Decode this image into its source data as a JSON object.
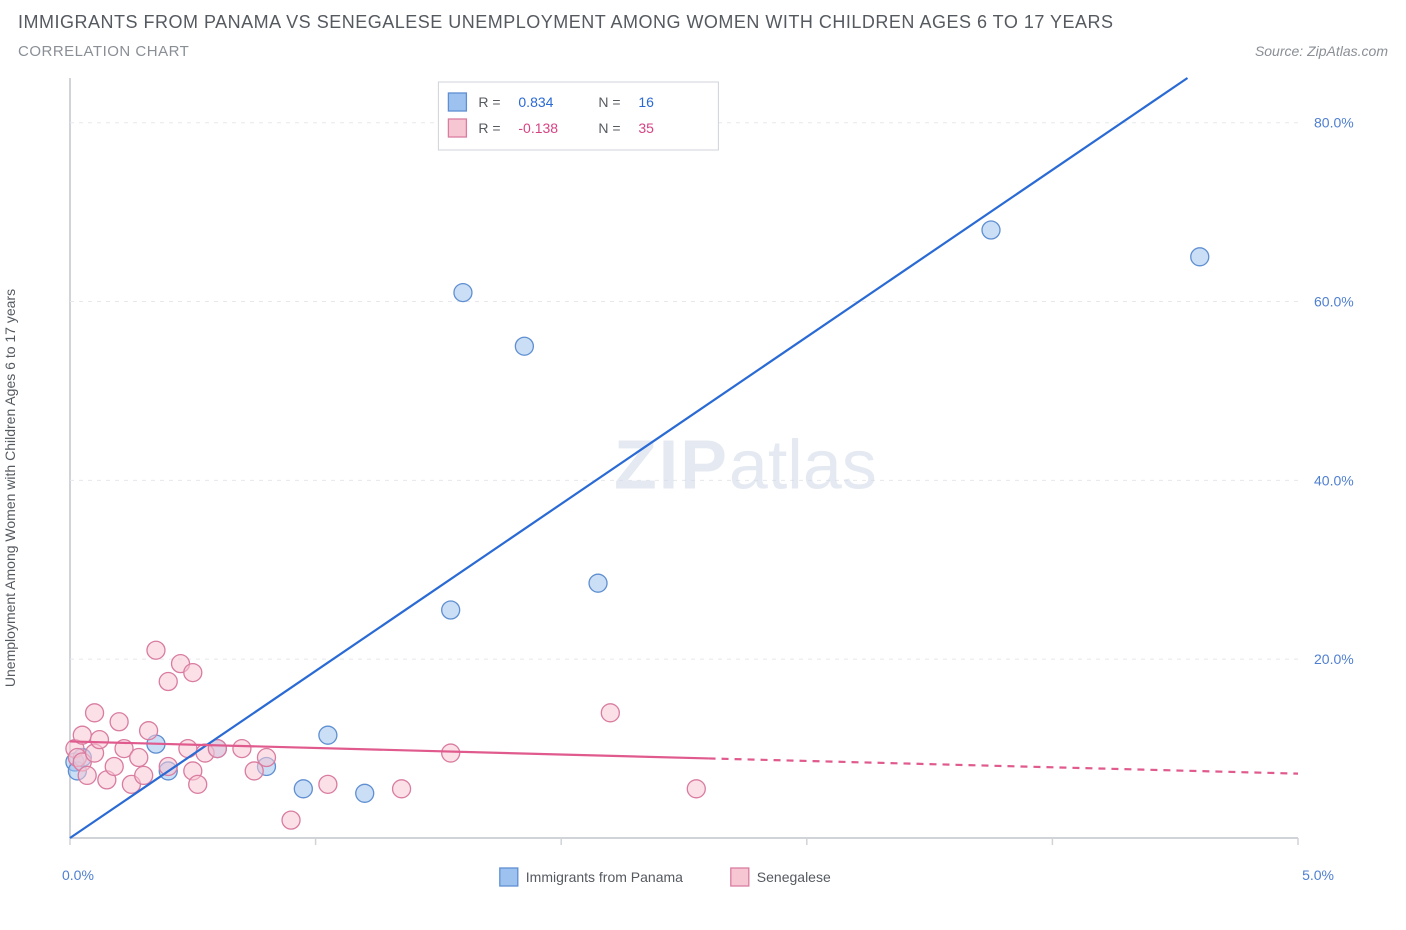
{
  "title": "IMMIGRANTS FROM PANAMA VS SENEGALESE UNEMPLOYMENT AMONG WOMEN WITH CHILDREN AGES 6 TO 17 YEARS",
  "subtitle": "CORRELATION CHART",
  "source_label": "Source: ZipAtlas.com",
  "ylabel": "Unemployment Among Women with Children Ages 6 to 17 years",
  "watermark": "ZIPatlas",
  "legend_box": {
    "rows": [
      {
        "swatch": "#9ec2ef",
        "border": "#5f8fd1",
        "r_label": "R =",
        "r_value": "0.834",
        "n_label": "N =",
        "n_value": "16",
        "value_color": "#2a6ad4"
      },
      {
        "swatch": "#f7c6d3",
        "border": "#d97ca0",
        "r_label": "R =",
        "r_value": "-0.138",
        "n_label": "N =",
        "n_value": "35",
        "value_color": "#d64383"
      }
    ]
  },
  "x_legend": [
    {
      "swatch": "#9ec2ef",
      "border": "#5f8fd1",
      "label": "Immigrants from Panama"
    },
    {
      "swatch": "#f7c6d3",
      "border": "#d97ca0",
      "label": "Senegalese"
    }
  ],
  "chart": {
    "type": "scatter",
    "background_color": "#ffffff",
    "grid_color": "#e6e8ec",
    "axis_color": "#d0d3d8",
    "xlim": [
      0,
      5
    ],
    "ylim": [
      0,
      85
    ],
    "x_ticks": [
      0,
      1,
      2,
      3,
      4,
      5
    ],
    "x_tick_labels": {
      "0": "0.0%",
      "5": "5.0%"
    },
    "y_ticks": [
      20,
      40,
      60,
      80
    ],
    "y_tick_labels": {
      "20": "20.0%",
      "40": "40.0%",
      "60": "60.0%",
      "80": "80.0%"
    },
    "tick_label_color": "#4f7fd1",
    "tick_label_fontsize": 14,
    "marker_radius": 9,
    "marker_opacity": 0.55,
    "series": [
      {
        "name": "Immigrants from Panama",
        "fill": "#9ec2ef",
        "stroke": "#5f8fd1",
        "line_color": "#2a6ad4",
        "line_width": 2.2,
        "regression": {
          "x1": 0.0,
          "y1": 0.0,
          "x2": 4.55,
          "y2": 85.0
        },
        "points": [
          [
            0.02,
            8.5
          ],
          [
            0.03,
            7.5
          ],
          [
            0.05,
            9.0
          ],
          [
            0.35,
            10.5
          ],
          [
            0.4,
            7.5
          ],
          [
            0.6,
            10.0
          ],
          [
            0.8,
            8.0
          ],
          [
            0.95,
            5.5
          ],
          [
            1.05,
            11.5
          ],
          [
            1.2,
            5.0
          ],
          [
            1.55,
            25.5
          ],
          [
            1.6,
            61.0
          ],
          [
            1.85,
            55.0
          ],
          [
            2.15,
            28.5
          ],
          [
            3.75,
            68.0
          ],
          [
            4.6,
            65.0
          ]
        ]
      },
      {
        "name": "Senegalese",
        "fill": "#f7c6d3",
        "stroke": "#d97ca0",
        "line_color": "#e05a8d",
        "line_width": 2.2,
        "regression_solid": {
          "x1": 0.0,
          "y1": 10.8,
          "x2": 2.6,
          "y2": 8.9
        },
        "regression_dashed": {
          "x1": 2.6,
          "y1": 8.9,
          "x2": 5.0,
          "y2": 7.2
        },
        "points": [
          [
            0.02,
            10.0
          ],
          [
            0.03,
            9.0
          ],
          [
            0.05,
            11.5
          ],
          [
            0.05,
            8.5
          ],
          [
            0.07,
            7.0
          ],
          [
            0.1,
            14.0
          ],
          [
            0.1,
            9.5
          ],
          [
            0.12,
            11.0
          ],
          [
            0.15,
            6.5
          ],
          [
            0.18,
            8.0
          ],
          [
            0.2,
            13.0
          ],
          [
            0.22,
            10.0
          ],
          [
            0.25,
            6.0
          ],
          [
            0.28,
            9.0
          ],
          [
            0.3,
            7.0
          ],
          [
            0.32,
            12.0
          ],
          [
            0.35,
            21.0
          ],
          [
            0.4,
            17.5
          ],
          [
            0.4,
            8.0
          ],
          [
            0.45,
            19.5
          ],
          [
            0.48,
            10.0
          ],
          [
            0.5,
            7.5
          ],
          [
            0.5,
            18.5
          ],
          [
            0.52,
            6.0
          ],
          [
            0.55,
            9.5
          ],
          [
            0.6,
            10.0
          ],
          [
            0.7,
            10.0
          ],
          [
            0.75,
            7.5
          ],
          [
            0.8,
            9.0
          ],
          [
            0.9,
            2.0
          ],
          [
            1.05,
            6.0
          ],
          [
            1.35,
            5.5
          ],
          [
            1.55,
            9.5
          ],
          [
            2.2,
            14.0
          ],
          [
            2.55,
            5.5
          ]
        ]
      }
    ]
  }
}
